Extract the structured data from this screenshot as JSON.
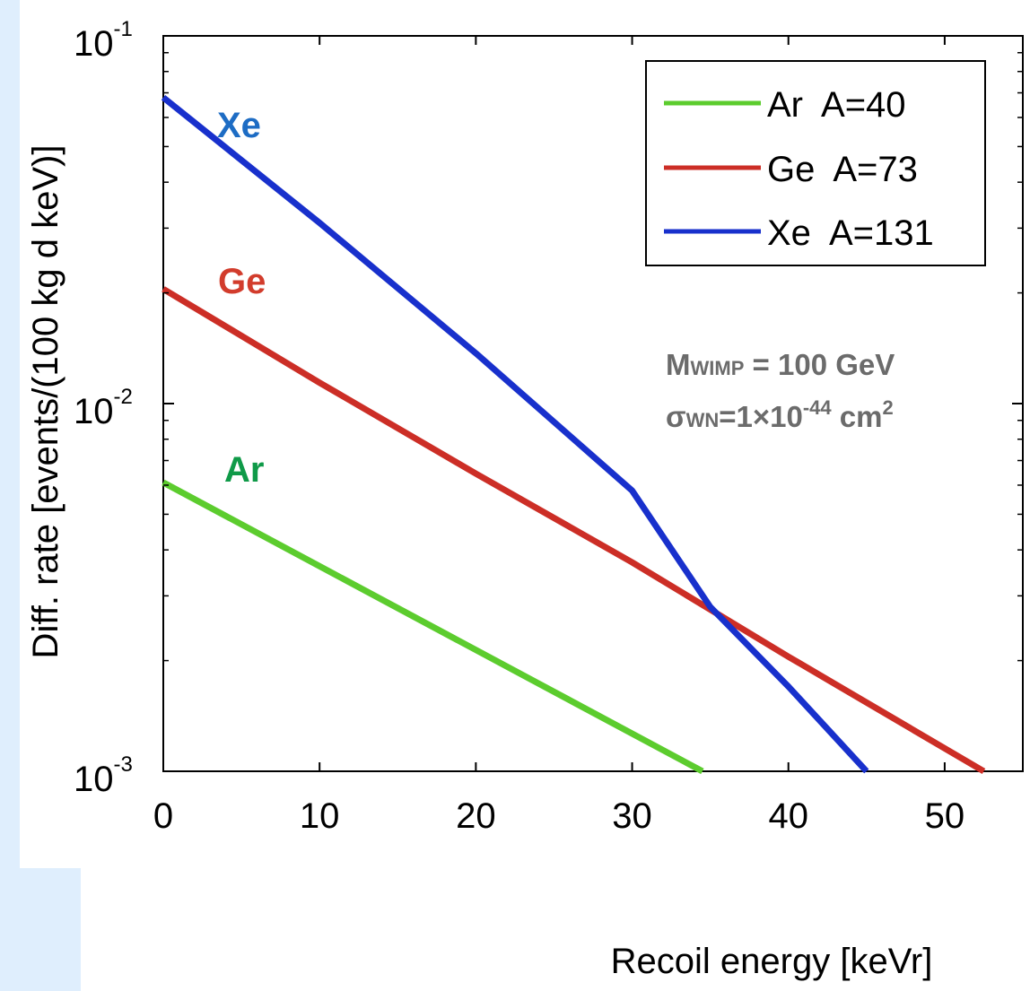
{
  "chart_data": {
    "type": "line",
    "xlabel": "Recoil energy [keVr]",
    "ylabel": "Diff. rate [events/(100 kg d keV)]",
    "xlim": [
      0,
      55
    ],
    "ylim": [
      0.001,
      0.1
    ],
    "yscale": "log",
    "grid": false,
    "legend_position": "top-right",
    "x_ticks": [
      "0",
      "10",
      "20",
      "30",
      "40",
      "50"
    ],
    "y_ticks": [
      {
        "base": "10",
        "exp": "-3"
      },
      {
        "base": "10",
        "exp": "-2"
      },
      {
        "base": "10",
        "exp": "-1"
      }
    ],
    "series": [
      {
        "name": "Ar  A=40",
        "label": "Ar",
        "color": "#5ccc2e",
        "label_color": "#0f9a48",
        "x": [
          0,
          34.5
        ],
        "y": [
          0.0061,
          0.001
        ]
      },
      {
        "name": "Ge  A=73",
        "label": "Ge",
        "color": "#cc2e26",
        "label_color": "#d23c2c",
        "x": [
          0,
          10,
          20,
          30,
          40,
          52.5
        ],
        "y": [
          0.0205,
          0.0114,
          0.00645,
          0.0037,
          0.00205,
          0.001
        ]
      },
      {
        "name": "Xe  A=131",
        "label": "Xe",
        "color": "#1830cc",
        "label_color": "#1d6cc4",
        "x": [
          0,
          10,
          20,
          30,
          35,
          40,
          45
        ],
        "y": [
          0.068,
          0.031,
          0.0137,
          0.0058,
          0.0028,
          0.0017,
          0.001
        ]
      }
    ],
    "annotations": {
      "mass": {
        "symbol": "M",
        "subscript": "WIMP",
        "text": " = 100 GeV"
      },
      "cross_section": {
        "symbol": "σ",
        "subscript": "WN",
        "text": "=1×10",
        "exponent": "-44",
        "unit": " cm",
        "unit_exponent": "2"
      }
    }
  }
}
